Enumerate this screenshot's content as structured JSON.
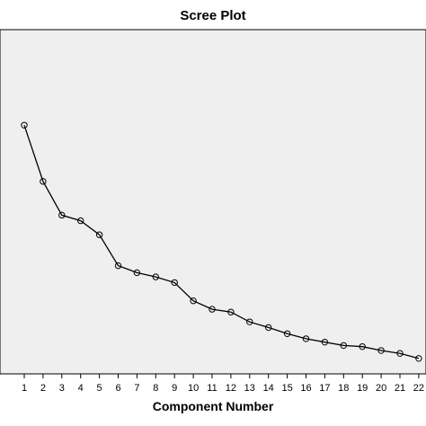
{
  "chart_data": {
    "type": "line",
    "title": "Scree Plot",
    "xlabel": "Component Number",
    "ylabel": "",
    "categories": [
      "1",
      "2",
      "3",
      "4",
      "5",
      "6",
      "7",
      "8",
      "9",
      "10",
      "11",
      "12",
      "13",
      "14",
      "15",
      "16",
      "17",
      "18",
      "19",
      "20",
      "21",
      "22"
    ],
    "series": [
      {
        "values": [
          7.6,
          5.6,
          4.4,
          4.2,
          3.7,
          2.6,
          2.35,
          2.2,
          2.0,
          1.35,
          1.05,
          0.95,
          0.6,
          0.4,
          0.18,
          0.0,
          -0.12,
          -0.24,
          -0.28,
          -0.42,
          -0.52,
          -0.7
        ]
      }
    ],
    "ylim": [
      -1.25,
      11.0
    ],
    "grid": false,
    "legend": "none",
    "colors": {
      "plot_background": "#efefef",
      "line": "#000000",
      "marker_stroke": "#000000",
      "frame": "#000000"
    }
  }
}
